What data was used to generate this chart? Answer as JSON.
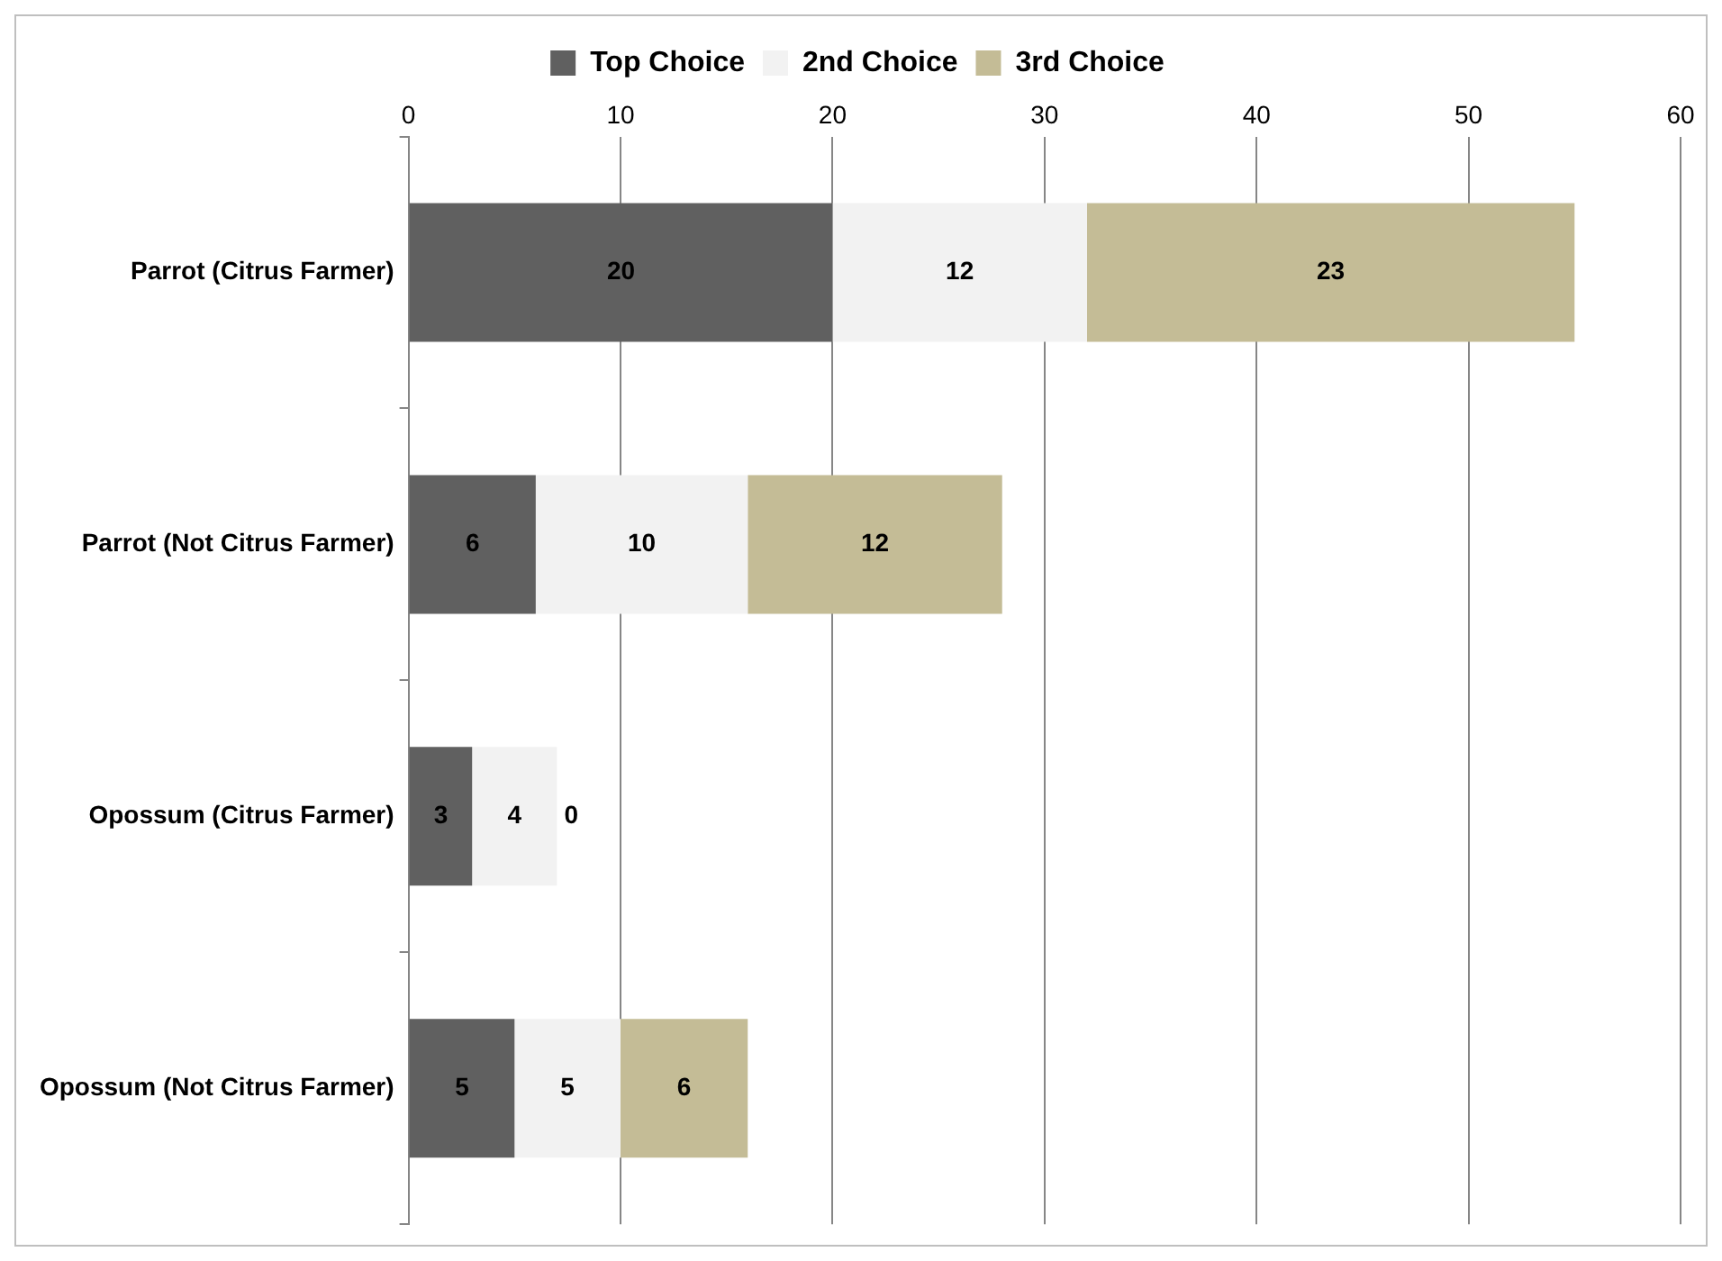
{
  "chart_data": {
    "type": "bar",
    "orientation": "horizontal",
    "stacked": true,
    "categories": [
      "Parrot (Citrus Farmer)",
      "Parrot (Not Citrus Farmer)",
      "Opossum (Citrus Farmer)",
      "Opossum (Not Citrus Farmer)"
    ],
    "series": [
      {
        "name": "Top Choice",
        "color": "#606060",
        "values": [
          20,
          6,
          3,
          5
        ]
      },
      {
        "name": "2nd Choice",
        "color": "#f2f2f2",
        "values": [
          12,
          10,
          4,
          5
        ]
      },
      {
        "name": "3rd Choice",
        "color": "#c4bc96",
        "values": [
          23,
          12,
          0,
          6
        ]
      }
    ],
    "xlim": [
      0,
      60
    ],
    "xticks": [
      0,
      10,
      20,
      30,
      40,
      50,
      60
    ],
    "grid": "x",
    "legend": "top",
    "data_labels": true
  }
}
